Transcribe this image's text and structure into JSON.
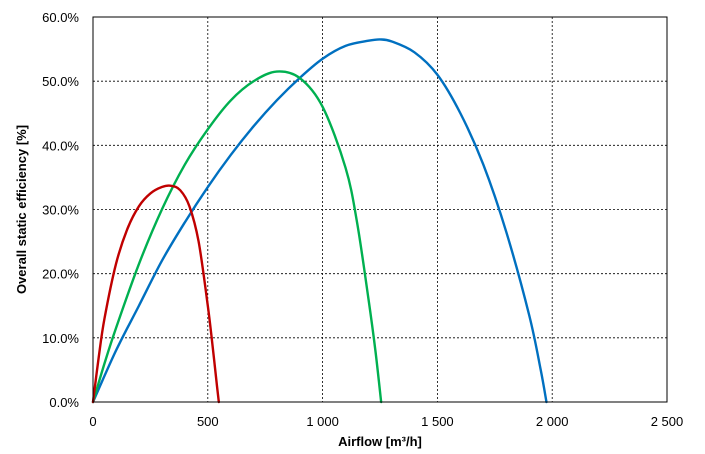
{
  "chart_data": {
    "type": "line",
    "title": "",
    "xlabel": "Airflow [m³/h]",
    "ylabel": "Overall static efficiency [%]",
    "xlim": [
      0,
      2500
    ],
    "ylim": [
      0,
      60
    ],
    "x_ticks": [
      0,
      500,
      1000,
      1500,
      2000,
      2500
    ],
    "x_tick_labels": [
      "0",
      "500",
      "1 000",
      "1 500",
      "2 000",
      "2 500"
    ],
    "y_ticks": [
      0,
      10,
      20,
      30,
      40,
      50,
      60
    ],
    "y_tick_labels": [
      "0.0%",
      "10.0%",
      "20.0%",
      "30.0%",
      "40.0%",
      "50.0%",
      "60.0%"
    ],
    "grid": true,
    "legend": "none",
    "series": [
      {
        "color": "#c00000",
        "x": [
          0,
          25,
          50,
          100,
          150,
          200,
          250,
          300,
          340,
          380,
          420,
          460,
          500,
          520,
          540,
          548
        ],
        "y": [
          0,
          7,
          13,
          21.5,
          27,
          30.5,
          32.5,
          33.5,
          33.7,
          33,
          30.5,
          25,
          15,
          9,
          2.5,
          0
        ]
      },
      {
        "color": "#00b050",
        "x": [
          0,
          50,
          100,
          200,
          300,
          400,
          500,
          600,
          700,
          800,
          900,
          1000,
          1100,
          1150,
          1200,
          1230,
          1255
        ],
        "y": [
          0,
          6,
          11.5,
          21.5,
          30,
          37,
          42.5,
          47,
          50,
          51.5,
          50.5,
          46,
          36.5,
          28,
          16,
          8,
          0
        ]
      },
      {
        "color": "#0070c0",
        "x": [
          0,
          100,
          200,
          300,
          400,
          500,
          600,
          700,
          800,
          900,
          1000,
          1100,
          1200,
          1250,
          1300,
          1400,
          1500,
          1600,
          1700,
          1800,
          1900,
          1950,
          1975
        ],
        "y": [
          0,
          8,
          15,
          22,
          28,
          33.5,
          38.5,
          43,
          47,
          50.5,
          53.5,
          55.5,
          56.3,
          56.5,
          56.2,
          54.5,
          51,
          45,
          37,
          26.5,
          13.5,
          5,
          0
        ]
      }
    ]
  }
}
